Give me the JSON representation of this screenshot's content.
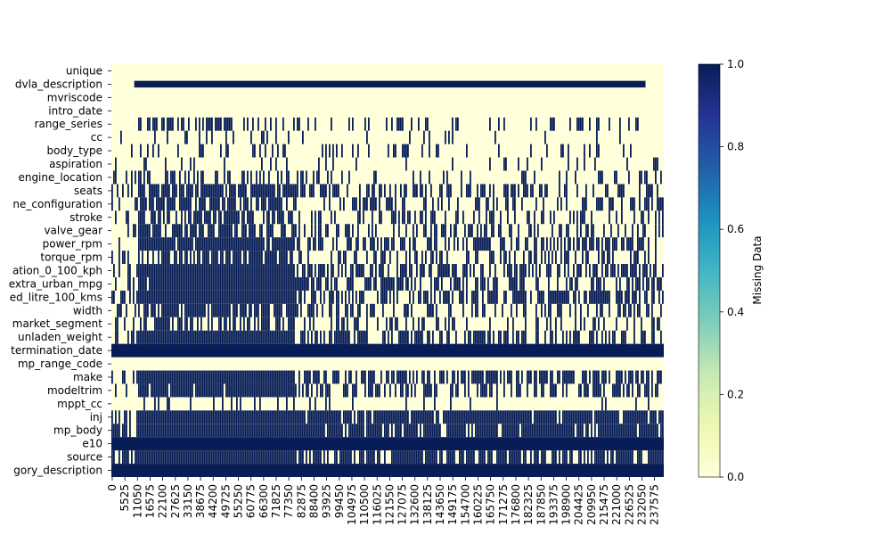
{
  "chart_data": {
    "type": "heatmap",
    "title": "",
    "xlabel": "",
    "ylabel": "",
    "row_labels_visible": [
      "unique",
      "dvla_description",
      "mvriscode",
      "intro_date",
      "range_series",
      "cc",
      "body_type",
      "aspiration",
      "engine_location",
      "seats",
      "ne_configuration",
      "stroke",
      "valve_gear",
      "power_rpm",
      "torque_rpm",
      "ation_0_100_kph",
      "extra_urban_mpg",
      "ed_litre_100_kms",
      "width",
      "market_segment",
      "unladen_weight",
      "termination_date",
      "mp_range_code",
      "make",
      "modeltrim",
      "mppt_cc",
      "inj",
      "mp_body",
      "e10",
      "source",
      "gory_description"
    ],
    "row_count": 31,
    "x_tick_labels": [
      "0",
      "5525",
      "11050",
      "16575",
      "22100",
      "27625",
      "33150",
      "38675",
      "44200",
      "49725",
      "55250",
      "60775",
      "66300",
      "71825",
      "77350",
      "82875",
      "88400",
      "93925",
      "99450",
      "104975",
      "110500",
      "116025",
      "121550",
      "127075",
      "132600",
      "138125",
      "143650",
      "149175",
      "154700",
      "160225",
      "165750",
      "171275",
      "176800",
      "182325",
      "187850",
      "193375",
      "198900",
      "204425",
      "209950",
      "215475",
      "221000",
      "226525",
      "232050",
      "237575"
    ],
    "x_range": [
      0,
      242000
    ],
    "colorbar": {
      "label": "Missing Data",
      "range": [
        0,
        1
      ],
      "ticks": [
        "0.0",
        "0.2",
        "0.4",
        "0.6",
        "0.8",
        "1.0"
      ],
      "colormap": "YlGnBu",
      "low_color": "#ffffd9",
      "high_color": "#081d58"
    },
    "row_patterns": [
      {
        "row": "unique",
        "missing_fraction": 0.0
      },
      {
        "row": "dvla_description",
        "missing_fraction": 0.95,
        "missing_x": [
          10000,
          234000
        ]
      },
      {
        "row": "mvriscode",
        "missing_fraction": 0.0
      },
      {
        "row": "intro_date",
        "missing_fraction": 0.0
      },
      {
        "row": "range_series",
        "missing_fraction": 0.25
      },
      {
        "row": "cc",
        "missing_fraction": 0.05
      },
      {
        "row": "body_type",
        "missing_fraction": 0.12
      },
      {
        "row": "aspiration",
        "missing_fraction": 0.08
      },
      {
        "row": "engine_location",
        "missing_fraction": 0.2
      },
      {
        "row": "seats",
        "missing_fraction": 0.45
      },
      {
        "row": "ne_configuration",
        "missing_fraction": 0.35
      },
      {
        "row": "stroke",
        "missing_fraction": 0.35
      },
      {
        "row": "valve_gear",
        "missing_fraction": 0.4
      },
      {
        "row": "power_rpm",
        "missing_fraction": 0.5
      },
      {
        "row": "torque_rpm",
        "missing_fraction": 0.35
      },
      {
        "row": "ation_0_100_kph",
        "missing_fraction": 0.55
      },
      {
        "row": "extra_urban_mpg",
        "missing_fraction": 0.5
      },
      {
        "row": "ed_litre_100_kms",
        "missing_fraction": 0.55
      },
      {
        "row": "width",
        "missing_fraction": 0.4
      },
      {
        "row": "market_segment",
        "missing_fraction": 0.3
      },
      {
        "row": "unladen_weight",
        "missing_fraction": 0.55
      },
      {
        "row": "termination_date",
        "missing_fraction": 1.0
      },
      {
        "row": "mp_range_code",
        "missing_fraction": 0.0
      },
      {
        "row": "make",
        "missing_fraction": 0.55
      },
      {
        "row": "modeltrim",
        "missing_fraction": 0.5
      },
      {
        "row": "mppt_cc",
        "missing_fraction": 0.05
      },
      {
        "row": "inj",
        "missing_fraction": 0.9
      },
      {
        "row": "mp_body",
        "missing_fraction": 0.85
      },
      {
        "row": "e10",
        "missing_fraction": 1.0
      },
      {
        "row": "source",
        "missing_fraction": 0.75
      },
      {
        "row": "gory_description",
        "missing_fraction": 1.0
      }
    ],
    "grid": false,
    "legend": "colorbar-right"
  }
}
